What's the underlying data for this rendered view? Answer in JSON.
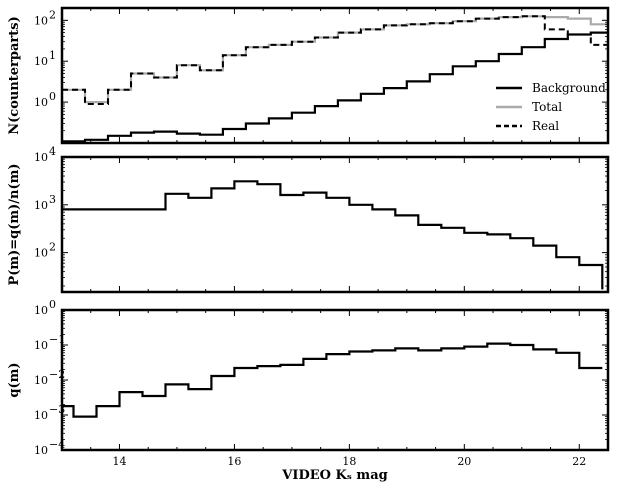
{
  "chart_data": [
    {
      "type": "line",
      "drawstyle": "steps",
      "ylabel": "N(counterparts)",
      "xlabel": "",
      "xlim": [
        13.0,
        22.5
      ],
      "yscale": "log",
      "ylim": [
        0.1,
        200
      ],
      "ytick_values": [
        1,
        10,
        100
      ],
      "ytick_labels": [
        "10",
        "10",
        "10"
      ],
      "ytick_exponents": [
        "0",
        "1",
        "2"
      ],
      "legend": {
        "placement": "lower-right",
        "entries": [
          {
            "label": "Background",
            "color": "#000000",
            "style": "solid"
          },
          {
            "label": "Total",
            "color": "#aaaaaa",
            "style": "solid"
          },
          {
            "label": "Real",
            "color": "#000000",
            "style": "dashed"
          }
        ]
      },
      "bin_edges": [
        13.0,
        13.4,
        13.8,
        14.2,
        14.6,
        15.0,
        15.4,
        15.8,
        16.2,
        16.6,
        17.0,
        17.4,
        17.8,
        18.2,
        18.6,
        19.0,
        19.4,
        19.8,
        20.2,
        20.6,
        21.0,
        21.4,
        21.8,
        22.2,
        22.5
      ],
      "series": [
        {
          "name": "Total",
          "color": "#aaaaaa",
          "dash": "",
          "width": 2.2,
          "values": [
            2.0,
            1.0,
            2.0,
            5.0,
            4.0,
            8.0,
            6.0,
            14,
            22,
            25,
            30,
            38,
            50,
            60,
            75,
            80,
            85,
            95,
            110,
            120,
            125,
            120,
            110,
            80
          ]
        },
        {
          "name": "Real",
          "color": "#000000",
          "dash": "6,4",
          "width": 2,
          "values": [
            2.0,
            0.9,
            2.0,
            5.0,
            4.0,
            8.0,
            6.0,
            14,
            22,
            25,
            30,
            38,
            50,
            60,
            75,
            80,
            85,
            95,
            110,
            120,
            125,
            60,
            45,
            25
          ]
        },
        {
          "name": "Background",
          "color": "#000000",
          "dash": "",
          "width": 2.2,
          "values": [
            0.11,
            0.12,
            0.15,
            0.18,
            0.19,
            0.17,
            0.16,
            0.22,
            0.3,
            0.4,
            0.55,
            0.8,
            1.1,
            1.6,
            2.2,
            3.2,
            4.8,
            7.5,
            10,
            15,
            22,
            35,
            45,
            50
          ]
        }
      ]
    },
    {
      "type": "line",
      "drawstyle": "steps",
      "ylabel": "P(m)=q(m)/n(m)",
      "xlabel": "",
      "xlim": [
        13.0,
        22.5
      ],
      "yscale": "log",
      "ylim": [
        15,
        10000
      ],
      "ytick_values": [
        100,
        1000,
        10000
      ],
      "ytick_labels": [
        "10",
        "10",
        "10"
      ],
      "ytick_exponents": [
        "2",
        "3",
        "4"
      ],
      "bin_edges": [
        13.0,
        14.8,
        15.2,
        15.6,
        16.0,
        16.4,
        16.8,
        17.2,
        17.6,
        18.0,
        18.4,
        18.8,
        19.2,
        19.6,
        20.0,
        20.4,
        20.8,
        21.2,
        21.6,
        22.0,
        22.4
      ],
      "series": [
        {
          "name": "",
          "color": "#000000",
          "dash": "",
          "width": 2.2,
          "values": [
            800,
            1700,
            1400,
            2200,
            3100,
            2700,
            1600,
            1800,
            1400,
            1000,
            800,
            600,
            380,
            330,
            260,
            240,
            200,
            140,
            80,
            55,
            17
          ]
        }
      ]
    },
    {
      "type": "line",
      "drawstyle": "steps",
      "ylabel": "q(m)",
      "xlabel": "VIDEO Kₛ mag",
      "xlim": [
        13.0,
        22.5
      ],
      "yscale": "log",
      "ylim": [
        0.0001,
        1
      ],
      "xtick_values": [
        14,
        16,
        18,
        20,
        22
      ],
      "xtick_labels": [
        "14",
        "16",
        "18",
        "20",
        "22"
      ],
      "ytick_values": [
        0.0001,
        0.001,
        0.01,
        0.1,
        1
      ],
      "ytick_labels": [
        "10",
        "10",
        "10",
        "10",
        "10"
      ],
      "ytick_exponents": [
        "−4",
        "−3",
        "−2",
        "−1",
        "0"
      ],
      "bin_edges": [
        13.0,
        13.2,
        13.6,
        14.0,
        14.4,
        14.8,
        15.2,
        15.6,
        16.0,
        16.4,
        16.8,
        17.2,
        17.6,
        18.0,
        18.4,
        18.8,
        19.2,
        19.6,
        20.0,
        20.4,
        20.8,
        21.2,
        21.6,
        22.0,
        22.4
      ],
      "series": [
        {
          "name": "",
          "color": "#000000",
          "dash": "",
          "width": 2.2,
          "values": [
            0.0018,
            0.0009,
            0.0018,
            0.0045,
            0.0035,
            0.0075,
            0.0055,
            0.013,
            0.022,
            0.025,
            0.027,
            0.04,
            0.055,
            0.065,
            0.07,
            0.08,
            0.07,
            0.08,
            0.09,
            0.11,
            0.1,
            0.075,
            0.06,
            0.022
          ]
        }
      ]
    }
  ]
}
